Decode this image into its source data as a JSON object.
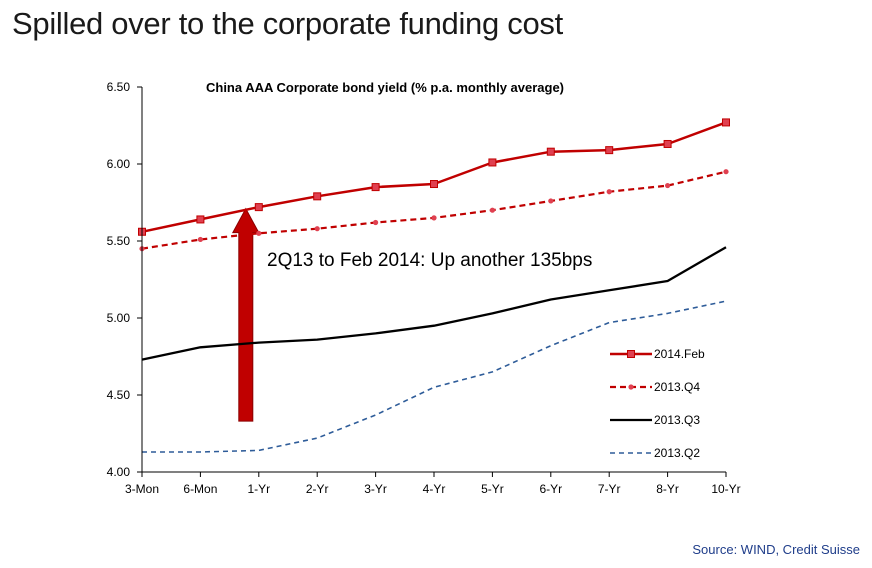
{
  "page": {
    "heading": "Spilled over to the corporate funding cost",
    "source": "Source: WIND, Credit Suisse"
  },
  "colors": {
    "feb2014": "#c00000",
    "feb2014_marker": "#e04050",
    "q4_2013": "#c00000",
    "q3_2013": "#000000",
    "q2_2013": "#2e5c99",
    "arrow": "#c00000",
    "axis": "#000000"
  },
  "chart_data": {
    "type": "line",
    "title": "China AAA Corporate bond yield (% p.a. monthly average)",
    "xlabel": "",
    "ylabel": "",
    "categories": [
      "3-Mon",
      "6-Mon",
      "1-Yr",
      "2-Yr",
      "3-Yr",
      "4-Yr",
      "5-Yr",
      "6-Yr",
      "7-Yr",
      "8-Yr",
      "10-Yr"
    ],
    "ylim": [
      4.0,
      6.5
    ],
    "yticks": [
      "4.00",
      "4.50",
      "5.00",
      "5.50",
      "6.00",
      "6.50"
    ],
    "grid": false,
    "legend_position": "bottom-right",
    "series": [
      {
        "name": "2014.Feb",
        "key": "feb2014",
        "style": "solid-marker",
        "values": [
          5.56,
          5.64,
          5.72,
          5.79,
          5.85,
          5.87,
          6.01,
          6.08,
          6.09,
          6.13,
          6.27
        ]
      },
      {
        "name": "2013.Q4",
        "key": "q4_2013",
        "style": "dashed-dot",
        "values": [
          5.45,
          5.51,
          5.55,
          5.58,
          5.62,
          5.65,
          5.7,
          5.76,
          5.82,
          5.86,
          5.95
        ]
      },
      {
        "name": "2013.Q3",
        "key": "q3_2013",
        "style": "solid",
        "values": [
          4.73,
          4.81,
          4.84,
          4.86,
          4.9,
          4.95,
          5.03,
          5.12,
          5.18,
          5.24,
          5.46
        ]
      },
      {
        "name": "2013.Q2",
        "key": "q2_2013",
        "style": "dashed",
        "values": [
          4.13,
          4.13,
          4.14,
          4.22,
          4.37,
          4.55,
          4.65,
          4.82,
          4.97,
          5.03,
          5.11
        ]
      }
    ],
    "annotation": {
      "text": "2Q13 to Feb 2014: Up another 135bps",
      "arrow_category": "1-Yr",
      "arrow_from": 4.33,
      "arrow_to": 5.71
    }
  }
}
